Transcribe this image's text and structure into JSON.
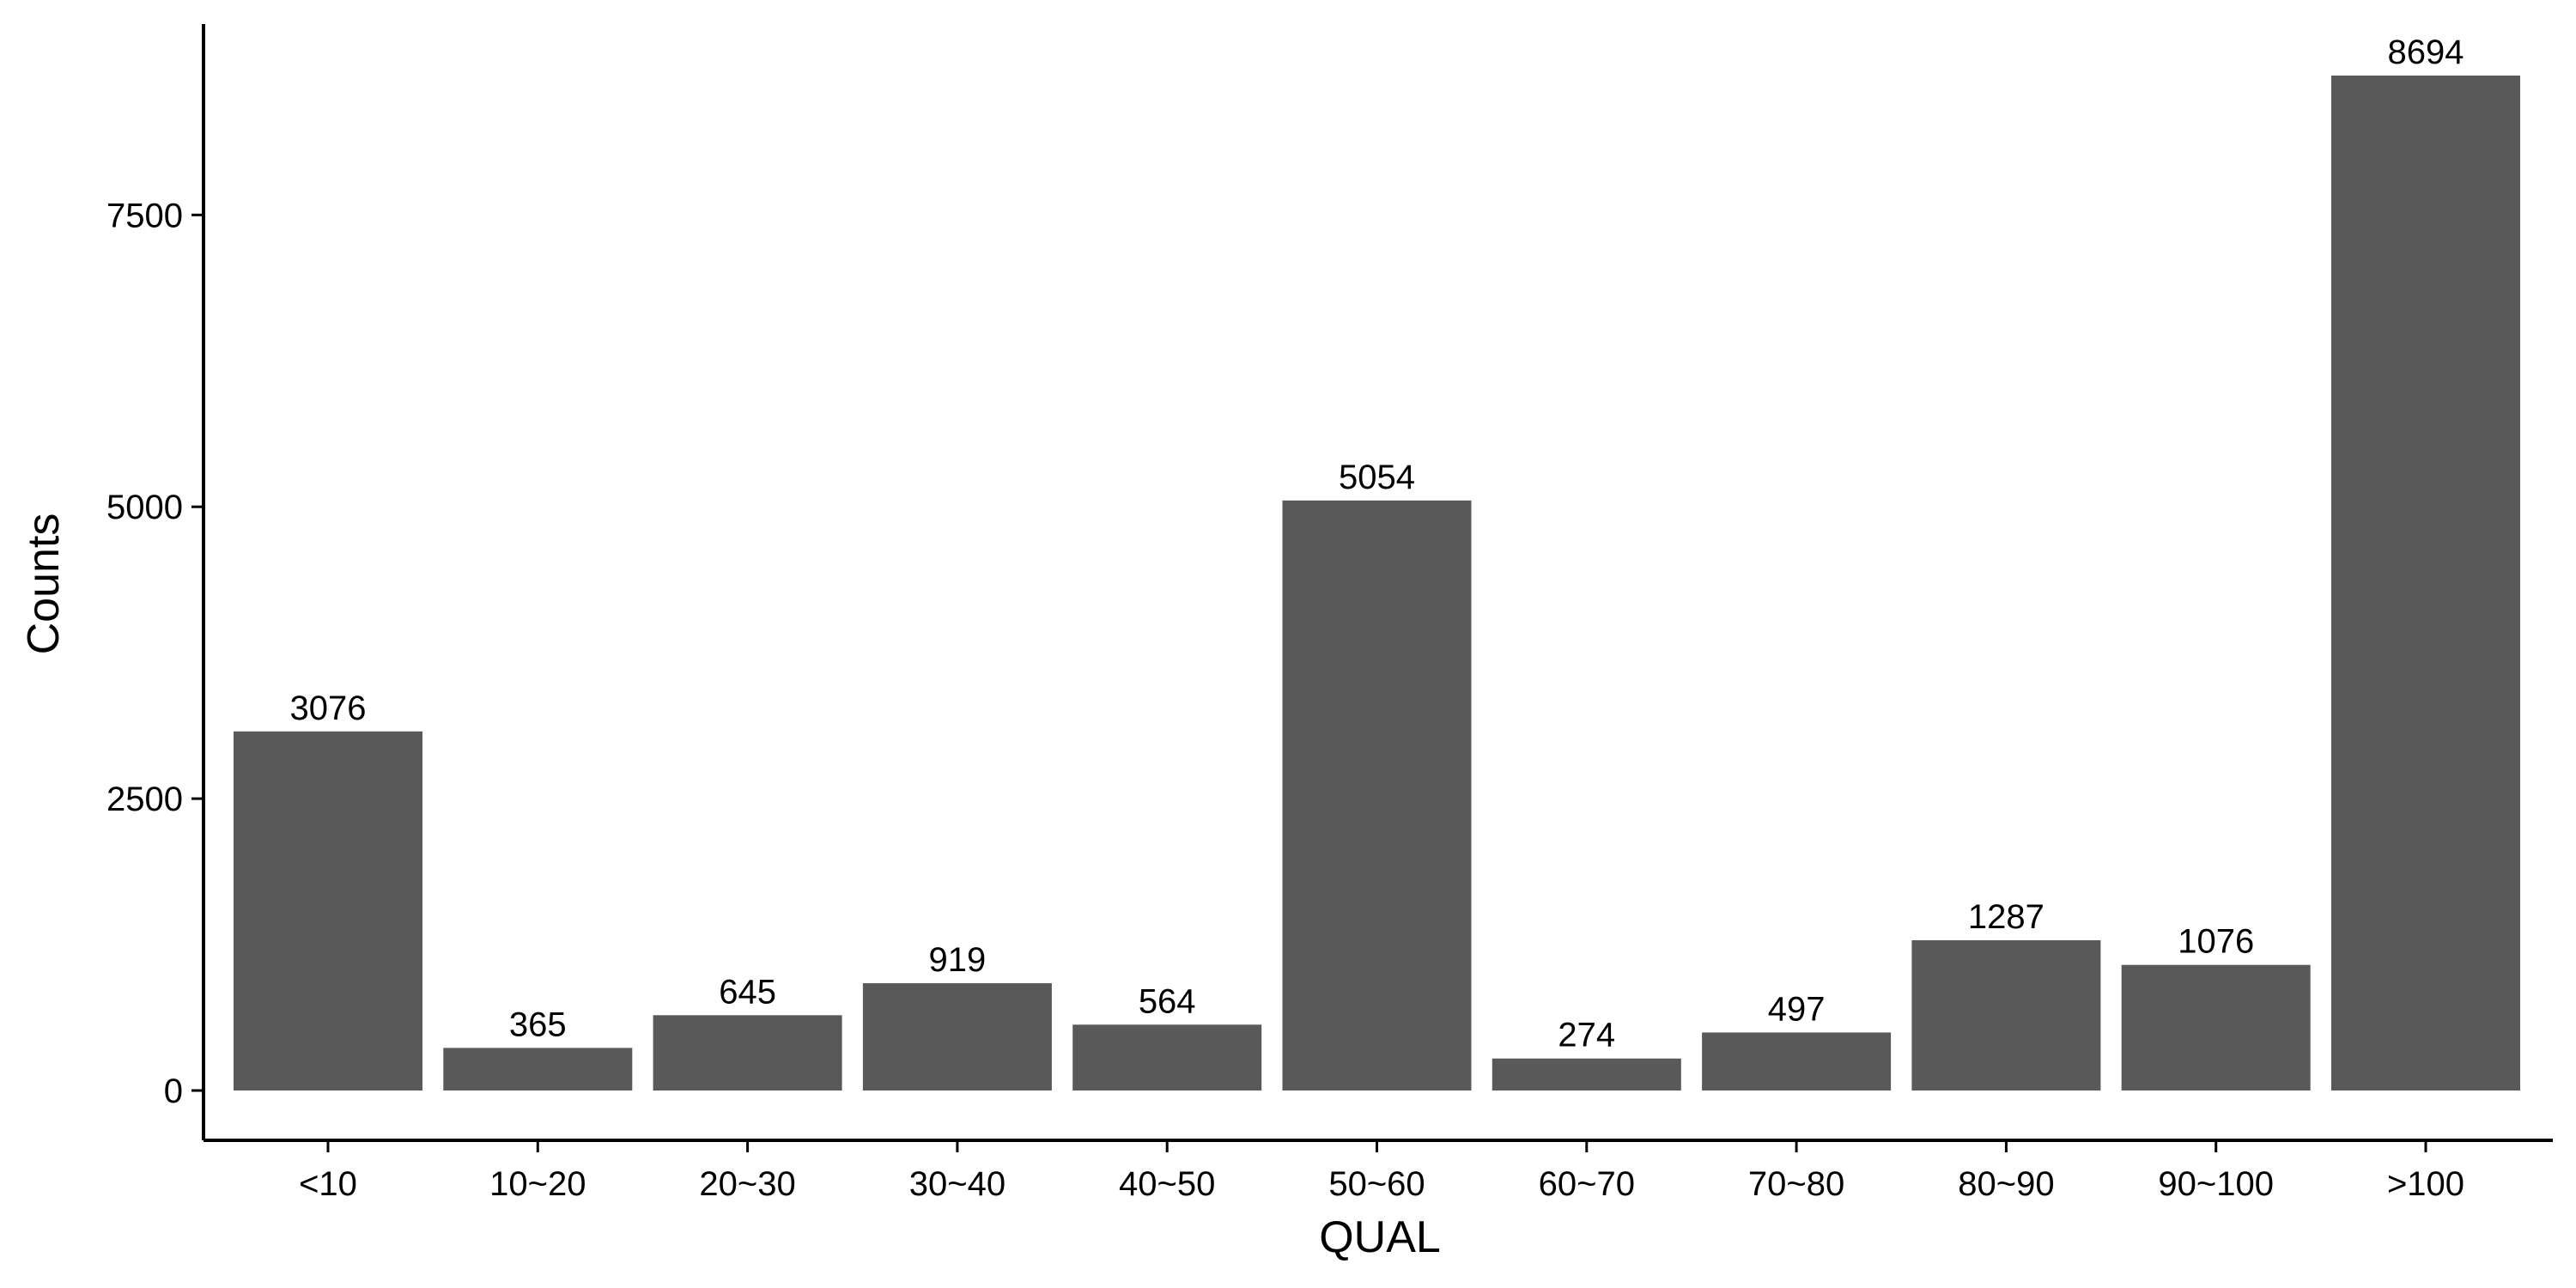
{
  "chart_data": {
    "type": "bar",
    "title": "",
    "xlabel": "QUAL",
    "ylabel": "Counts",
    "categories": [
      "<10",
      "10~20",
      "20~30",
      "30~40",
      "40~50",
      "50~60",
      "60~70",
      "70~80",
      "80~90",
      "90~100",
      ">100"
    ],
    "values": [
      3076,
      365,
      645,
      919,
      564,
      5054,
      274,
      497,
      1287,
      1076,
      8694
    ],
    "ylim": [
      0,
      8694
    ],
    "yticks": [
      0,
      2500,
      5000,
      7500
    ],
    "grid": false,
    "legend": "none",
    "bar_color": "#595959",
    "axis_color": "#000000"
  }
}
